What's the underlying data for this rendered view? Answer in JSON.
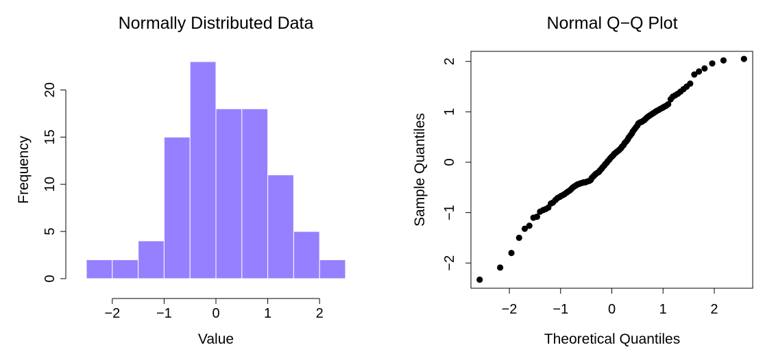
{
  "colors": {
    "bar_fill": "#9780ff",
    "bar_edge": "#ffffff",
    "point": "#000000"
  },
  "chart_data": [
    {
      "type": "bar",
      "subtype": "histogram",
      "title": "Normally Distributed Data",
      "xlabel": "Value",
      "ylabel": "Frequency",
      "bin_edges": [
        -2.5,
        -2,
        -1.5,
        -1,
        -0.5,
        0,
        0.5,
        1,
        1.5,
        2,
        2.5
      ],
      "values": [
        2,
        2,
        4,
        15,
        23,
        18,
        18,
        11,
        5,
        2
      ],
      "xlim": [
        -2.5,
        2.5
      ],
      "ylim": [
        0,
        23
      ],
      "xticks": [
        -2,
        -1,
        0,
        1,
        2
      ],
      "xtick_labels": [
        "−2",
        "−1",
        "0",
        "1",
        "2"
      ],
      "yticks": [
        0,
        5,
        10,
        15,
        20
      ],
      "ytick_labels": [
        "0",
        "5",
        "10",
        "15",
        "20"
      ],
      "grid": false,
      "legend": "none"
    },
    {
      "type": "scatter",
      "subtype": "qq-plot",
      "title": "Normal Q−Q Plot",
      "xlabel": "Theoretical Quantiles",
      "ylabel": "Sample Quantiles",
      "xlim": [
        -2.75,
        2.75
      ],
      "ylim": [
        -2.5,
        2.2
      ],
      "xticks": [
        -2,
        -1,
        0,
        1,
        2
      ],
      "xtick_labels": [
        "−2",
        "−1",
        "0",
        "1",
        "2"
      ],
      "yticks": [
        -2,
        -1,
        0,
        1,
        2
      ],
      "ytick_labels": [
        "−2",
        "−1",
        "0",
        "1",
        "2"
      ],
      "grid": false,
      "legend": "none",
      "points": [
        {
          "x": -2.58,
          "y": -2.33
        },
        {
          "x": -2.18,
          "y": -2.09
        },
        {
          "x": -1.96,
          "y": -1.8
        },
        {
          "x": -1.81,
          "y": -1.5
        },
        {
          "x": -1.7,
          "y": -1.32
        },
        {
          "x": -1.61,
          "y": -1.26
        },
        {
          "x": -1.53,
          "y": -1.1
        },
        {
          "x": -1.46,
          "y": -1.08
        },
        {
          "x": -1.4,
          "y": -0.98
        },
        {
          "x": -1.34,
          "y": -0.95
        },
        {
          "x": -1.29,
          "y": -0.93
        },
        {
          "x": -1.24,
          "y": -0.9
        },
        {
          "x": -1.19,
          "y": -0.82
        },
        {
          "x": -1.15,
          "y": -0.8
        },
        {
          "x": -1.1,
          "y": -0.75
        },
        {
          "x": -1.06,
          "y": -0.71
        },
        {
          "x": -1.02,
          "y": -0.69
        },
        {
          "x": -0.99,
          "y": -0.67
        },
        {
          "x": -0.95,
          "y": -0.65
        },
        {
          "x": -0.92,
          "y": -0.63
        },
        {
          "x": -0.88,
          "y": -0.6
        },
        {
          "x": -0.85,
          "y": -0.58
        },
        {
          "x": -0.82,
          "y": -0.56
        },
        {
          "x": -0.79,
          "y": -0.53
        },
        {
          "x": -0.76,
          "y": -0.5
        },
        {
          "x": -0.73,
          "y": -0.48
        },
        {
          "x": -0.7,
          "y": -0.46
        },
        {
          "x": -0.67,
          "y": -0.44
        },
        {
          "x": -0.64,
          "y": -0.43
        },
        {
          "x": -0.61,
          "y": -0.42
        },
        {
          "x": -0.58,
          "y": -0.41
        },
        {
          "x": -0.55,
          "y": -0.4
        },
        {
          "x": -0.52,
          "y": -0.4
        },
        {
          "x": -0.5,
          "y": -0.39
        },
        {
          "x": -0.47,
          "y": -0.38
        },
        {
          "x": -0.44,
          "y": -0.37
        },
        {
          "x": -0.41,
          "y": -0.35
        },
        {
          "x": -0.39,
          "y": -0.31
        },
        {
          "x": -0.36,
          "y": -0.28
        },
        {
          "x": -0.33,
          "y": -0.25
        },
        {
          "x": -0.31,
          "y": -0.23
        },
        {
          "x": -0.28,
          "y": -0.21
        },
        {
          "x": -0.25,
          "y": -0.19
        },
        {
          "x": -0.23,
          "y": -0.16
        },
        {
          "x": -0.2,
          "y": -0.13
        },
        {
          "x": -0.18,
          "y": -0.1
        },
        {
          "x": -0.15,
          "y": -0.07
        },
        {
          "x": -0.13,
          "y": -0.04
        },
        {
          "x": -0.1,
          "y": -0.01
        },
        {
          "x": -0.08,
          "y": 0.02
        },
        {
          "x": -0.05,
          "y": 0.05
        },
        {
          "x": -0.03,
          "y": 0.08
        },
        {
          "x": 0.0,
          "y": 0.11
        },
        {
          "x": 0.03,
          "y": 0.14
        },
        {
          "x": 0.05,
          "y": 0.17
        },
        {
          "x": 0.08,
          "y": 0.19
        },
        {
          "x": 0.1,
          "y": 0.21
        },
        {
          "x": 0.13,
          "y": 0.23
        },
        {
          "x": 0.15,
          "y": 0.25
        },
        {
          "x": 0.18,
          "y": 0.28
        },
        {
          "x": 0.2,
          "y": 0.31
        },
        {
          "x": 0.23,
          "y": 0.34
        },
        {
          "x": 0.25,
          "y": 0.38
        },
        {
          "x": 0.28,
          "y": 0.41
        },
        {
          "x": 0.31,
          "y": 0.45
        },
        {
          "x": 0.33,
          "y": 0.49
        },
        {
          "x": 0.36,
          "y": 0.53
        },
        {
          "x": 0.39,
          "y": 0.57
        },
        {
          "x": 0.41,
          "y": 0.61
        },
        {
          "x": 0.44,
          "y": 0.65
        },
        {
          "x": 0.47,
          "y": 0.69
        },
        {
          "x": 0.5,
          "y": 0.73
        },
        {
          "x": 0.52,
          "y": 0.77
        },
        {
          "x": 0.55,
          "y": 0.79
        },
        {
          "x": 0.58,
          "y": 0.8
        },
        {
          "x": 0.61,
          "y": 0.82
        },
        {
          "x": 0.64,
          "y": 0.84
        },
        {
          "x": 0.67,
          "y": 0.87
        },
        {
          "x": 0.7,
          "y": 0.9
        },
        {
          "x": 0.73,
          "y": 0.92
        },
        {
          "x": 0.76,
          "y": 0.94
        },
        {
          "x": 0.79,
          "y": 0.96
        },
        {
          "x": 0.82,
          "y": 0.98
        },
        {
          "x": 0.85,
          "y": 1.0
        },
        {
          "x": 0.88,
          "y": 1.02
        },
        {
          "x": 0.92,
          "y": 1.04
        },
        {
          "x": 0.95,
          "y": 1.06
        },
        {
          "x": 0.99,
          "y": 1.08
        },
        {
          "x": 1.02,
          "y": 1.1
        },
        {
          "x": 1.06,
          "y": 1.12
        },
        {
          "x": 1.1,
          "y": 1.15
        },
        {
          "x": 1.15,
          "y": 1.25
        },
        {
          "x": 1.19,
          "y": 1.3
        },
        {
          "x": 1.24,
          "y": 1.33
        },
        {
          "x": 1.29,
          "y": 1.36
        },
        {
          "x": 1.34,
          "y": 1.4
        },
        {
          "x": 1.4,
          "y": 1.45
        },
        {
          "x": 1.46,
          "y": 1.5
        },
        {
          "x": 1.53,
          "y": 1.56
        },
        {
          "x": 1.61,
          "y": 1.74
        },
        {
          "x": 1.7,
          "y": 1.8
        },
        {
          "x": 1.81,
          "y": 1.86
        },
        {
          "x": 1.96,
          "y": 1.96
        },
        {
          "x": 2.18,
          "y": 2.02
        },
        {
          "x": 2.58,
          "y": 2.05
        }
      ]
    }
  ]
}
